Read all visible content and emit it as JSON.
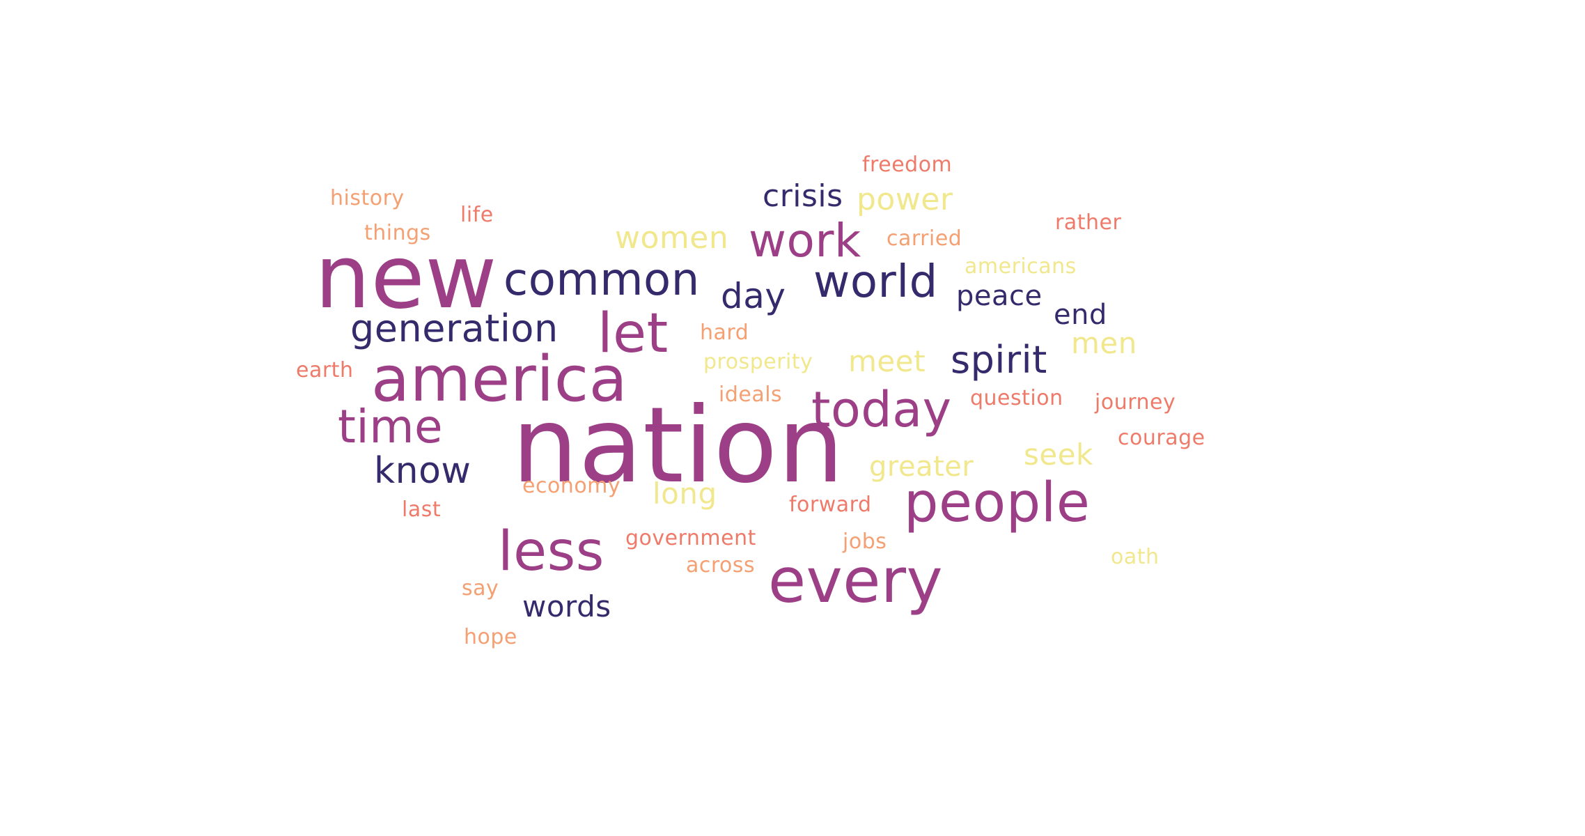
{
  "palette": {
    "magenta": "#9c3f86",
    "navy": "#352a6b",
    "salmon": "#ee7a6a",
    "orange": "#f4a072",
    "yellow": "#f1e78c"
  },
  "words": [
    {
      "text": "nation",
      "color": "magenta"
    },
    {
      "text": "new",
      "color": "magenta"
    },
    {
      "text": "america",
      "color": "magenta"
    },
    {
      "text": "every",
      "color": "magenta"
    },
    {
      "text": "people",
      "color": "magenta"
    },
    {
      "text": "less",
      "color": "magenta"
    },
    {
      "text": "let",
      "color": "magenta"
    },
    {
      "text": "today",
      "color": "magenta"
    },
    {
      "text": "time",
      "color": "magenta"
    },
    {
      "text": "work",
      "color": "magenta"
    },
    {
      "text": "common",
      "color": "navy"
    },
    {
      "text": "world",
      "color": "navy"
    },
    {
      "text": "generation",
      "color": "navy"
    },
    {
      "text": "know",
      "color": "navy"
    },
    {
      "text": "spirit",
      "color": "navy"
    },
    {
      "text": "day",
      "color": "navy"
    },
    {
      "text": "crisis",
      "color": "navy"
    },
    {
      "text": "words",
      "color": "navy"
    },
    {
      "text": "peace",
      "color": "navy"
    },
    {
      "text": "end",
      "color": "navy"
    },
    {
      "text": "women",
      "color": "yellow"
    },
    {
      "text": "power",
      "color": "yellow"
    },
    {
      "text": "meet",
      "color": "yellow"
    },
    {
      "text": "men",
      "color": "yellow"
    },
    {
      "text": "seek",
      "color": "yellow"
    },
    {
      "text": "greater",
      "color": "yellow"
    },
    {
      "text": "long",
      "color": "yellow"
    },
    {
      "text": "prosperity",
      "color": "yellow"
    },
    {
      "text": "americans",
      "color": "yellow"
    },
    {
      "text": "oath",
      "color": "yellow"
    },
    {
      "text": "freedom",
      "color": "salmon"
    },
    {
      "text": "history",
      "color": "orange"
    },
    {
      "text": "life",
      "color": "salmon"
    },
    {
      "text": "things",
      "color": "orange"
    },
    {
      "text": "rather",
      "color": "salmon"
    },
    {
      "text": "carried",
      "color": "orange"
    },
    {
      "text": "hard",
      "color": "orange"
    },
    {
      "text": "earth",
      "color": "salmon"
    },
    {
      "text": "ideals",
      "color": "orange"
    },
    {
      "text": "question",
      "color": "salmon"
    },
    {
      "text": "journey",
      "color": "salmon"
    },
    {
      "text": "courage",
      "color": "salmon"
    },
    {
      "text": "economy",
      "color": "orange"
    },
    {
      "text": "last",
      "color": "salmon"
    },
    {
      "text": "forward",
      "color": "salmon"
    },
    {
      "text": "government",
      "color": "salmon"
    },
    {
      "text": "jobs",
      "color": "orange"
    },
    {
      "text": "across",
      "color": "orange"
    },
    {
      "text": "say",
      "color": "orange"
    },
    {
      "text": "hope",
      "color": "orange"
    }
  ]
}
